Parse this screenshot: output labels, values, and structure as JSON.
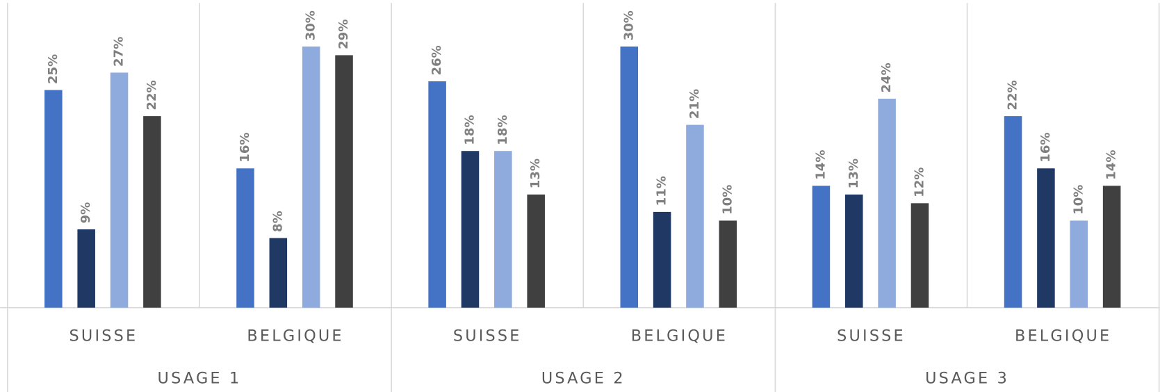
{
  "chart_data": {
    "type": "bar",
    "categories": [
      "SUISSE",
      "BELGIQUE",
      "SUISSE",
      "BELGIQUE",
      "SUISSE",
      "BELGIQUE"
    ],
    "category_groups": [
      "USAGE 1",
      "USAGE 2",
      "USAGE 3"
    ],
    "ylim": [
      0,
      35
    ],
    "series": [
      {
        "color": "#4472c4",
        "values": [
          25,
          16,
          26,
          30,
          14,
          22
        ],
        "value_labels": [
          "25%",
          "16%",
          "26%",
          "30%",
          "14%",
          "22%"
        ]
      },
      {
        "color": "#203864",
        "values": [
          9,
          8,
          18,
          11,
          13,
          16
        ],
        "value_labels": [
          "9%",
          "8%",
          "18%",
          "11%",
          "13%",
          "16%"
        ]
      },
      {
        "color": "#8faadc",
        "values": [
          27,
          30,
          18,
          21,
          24,
          10
        ],
        "value_labels": [
          "27%",
          "30%",
          "18%",
          "21%",
          "24%",
          "10%"
        ]
      },
      {
        "color": "#404040",
        "values": [
          22,
          29,
          13,
          10,
          12,
          14
        ],
        "value_labels": [
          "22%",
          "29%",
          "13%",
          "10%",
          "12%",
          "14%"
        ]
      }
    ]
  }
}
